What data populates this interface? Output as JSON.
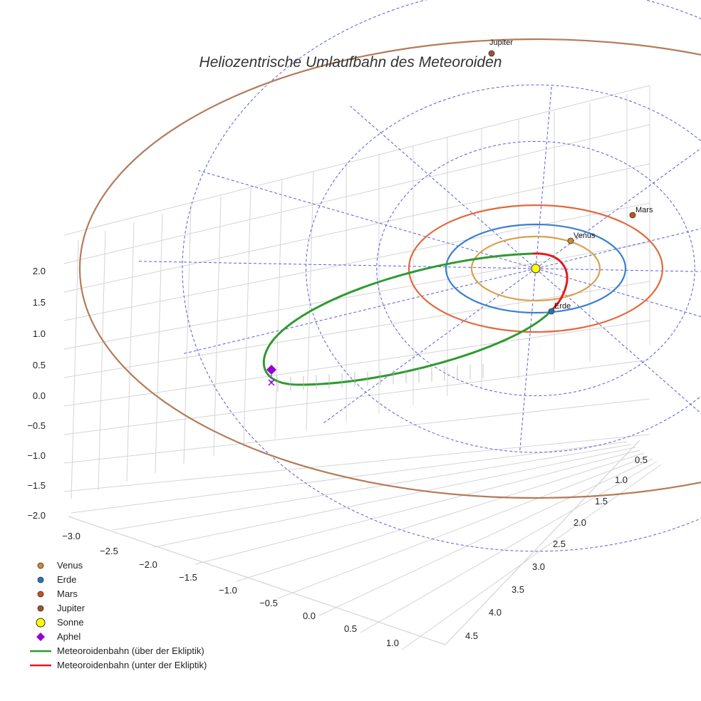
{
  "chart_data": {
    "type": "scatter3d",
    "title": "Heliozentrische Umlaufbahn des Meteoroiden",
    "axes": {
      "x_ticks": [
        "−3.0",
        "−2.5",
        "−2.0",
        "−1.5",
        "−1.0",
        "−0.5",
        "0.0",
        "0.5",
        "1.0"
      ],
      "y_ticks": [
        "0.5",
        "1.0",
        "1.5",
        "2.0",
        "2.5",
        "3.0",
        "3.5",
        "4.0",
        "4.5"
      ],
      "z_ticks": [
        "2.0",
        "1.5",
        "1.0",
        "0.5",
        "0.0",
        "−0.5",
        "−1.0",
        "−1.5",
        "−2.0"
      ],
      "xlim": [
        -3.2,
        1.2
      ],
      "ylim": [
        0.3,
        4.7
      ],
      "zlim": [
        -2.1,
        2.1
      ],
      "grid": true
    },
    "planets": [
      {
        "name": "Venus",
        "label": "Venus",
        "orbit_radius_au": 0.72,
        "color": "#cc8a2f",
        "orbit_color": "#d9a04a"
      },
      {
        "name": "Erde",
        "label": "Erde",
        "orbit_radius_au": 1.0,
        "color": "#1f77b4",
        "orbit_color": "#3a7fd0"
      },
      {
        "name": "Mars",
        "label": "Mars",
        "orbit_radius_au": 1.52,
        "color": "#c8501a",
        "orbit_color": "#e06a3c"
      },
      {
        "name": "Jupiter",
        "label": "Jupiter",
        "orbit_radius_au": 5.2,
        "color": "#a0522d",
        "orbit_color": "#b37b5a"
      }
    ],
    "sun": {
      "label": "Sonne",
      "color": "#ffff00"
    },
    "aphel": {
      "label": "Aphel",
      "color": "#9400d3"
    },
    "meteoroid_orbit": {
      "above_label": "Meteoroidenbahn (über der Ekliptik)",
      "below_label": "Meteoroidenbahn (unter der Ekliptik)",
      "above_color": "#2e9a30",
      "below_color": "#e31a1c"
    },
    "legend": [
      {
        "label": "Venus",
        "marker": "dot",
        "color": "#cc8a2f"
      },
      {
        "label": "Erde",
        "marker": "dot",
        "color": "#1f77b4"
      },
      {
        "label": "Mars",
        "marker": "dot",
        "color": "#c8501a"
      },
      {
        "label": "Jupiter",
        "marker": "dot",
        "color": "#a0522d"
      },
      {
        "label": "Sonne",
        "marker": "big-dot",
        "color": "#ffff00"
      },
      {
        "label": "Aphel",
        "marker": "diamond",
        "color": "#9400d3"
      },
      {
        "label": "Meteoroidenbahn (über der Ekliptik)",
        "marker": "line",
        "color": "#2e9a30"
      },
      {
        "label": "Meteoroidenbahn (unter der Ekliptik)",
        "marker": "line",
        "color": "#e31a1c"
      }
    ]
  }
}
